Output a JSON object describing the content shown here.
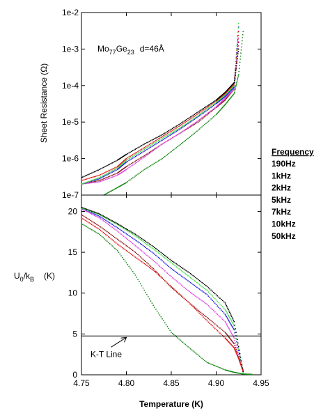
{
  "chart_data": [
    {
      "type": "scatter",
      "name": "sheet-resistance",
      "annotation": "Mo77Ge23  d=46Å",
      "annotation_parts": {
        "base1": "Mo",
        "sub1": "77",
        "base2": "Ge",
        "sub2": "23",
        "rest": "d=46Å"
      },
      "ylabel": "Sheet Resistance (Ω)",
      "xlim": [
        4.75,
        4.95
      ],
      "ylim": [
        1e-07,
        0.01
      ],
      "yscale": "log",
      "ytick_labels": [
        "1e-2",
        "1e-3",
        "1e-4",
        "1e-5",
        "1e-6",
        "1e-7"
      ],
      "ytick_values": [
        0.01,
        0.001,
        0.0001,
        1e-05,
        1e-06,
        1e-07
      ],
      "series": [
        {
          "name": "190Hz",
          "color": "#1a8a1a",
          "x": [
            4.775,
            4.79,
            4.8,
            4.82,
            4.84,
            4.86,
            4.88,
            4.9,
            4.91,
            4.92,
            4.925,
            4.93
          ],
          "y": [
            1e-07,
            1.6e-07,
            2.2e-07,
            5e-07,
            1e-06,
            2.4e-06,
            6e-06,
            1.6e-05,
            3e-05,
            6e-05,
            0.0002,
            0.003
          ]
        },
        {
          "name": "1kHz",
          "color": "#8b1a1a",
          "x": [
            4.75,
            4.77,
            4.79,
            4.8,
            4.82,
            4.84,
            4.86,
            4.88,
            4.9,
            4.91,
            4.92,
            4.925
          ],
          "y": [
            2e-07,
            2.5e-07,
            4e-07,
            6e-07,
            1.2e-06,
            2.5e-06,
            5e-06,
            1e-05,
            2.5e-05,
            4e-05,
            8e-05,
            0.0015
          ]
        },
        {
          "name": "2kHz",
          "color": "#e040e0",
          "x": [
            4.75,
            4.77,
            4.79,
            4.8,
            4.82,
            4.84,
            4.86,
            4.88,
            4.9,
            4.91,
            4.92,
            4.925
          ],
          "y": [
            2e-07,
            2.3e-07,
            3.5e-07,
            5e-07,
            1.1e-06,
            2.5e-06,
            5e-06,
            1.1e-05,
            2.6e-05,
            4.5e-05,
            8e-05,
            0.002
          ]
        },
        {
          "name": "5kHz",
          "color": "#1a1ae0",
          "x": [
            4.75,
            4.77,
            4.79,
            4.8,
            4.82,
            4.84,
            4.86,
            4.88,
            4.9,
            4.91,
            4.92,
            4.925
          ],
          "y": [
            2e-07,
            2.8e-07,
            5e-07,
            8e-07,
            1.6e-06,
            3.2e-06,
            6.5e-06,
            1.4e-05,
            3.2e-05,
            5e-05,
            9e-05,
            0.004
          ]
        },
        {
          "name": "7kHz",
          "color": "#40e040",
          "x": [
            4.75,
            4.77,
            4.79,
            4.8,
            4.82,
            4.84,
            4.86,
            4.88,
            4.9,
            4.91,
            4.92,
            4.925
          ],
          "y": [
            2e-07,
            3e-07,
            5.5e-07,
            9e-07,
            1.8e-06,
            3.6e-06,
            7e-06,
            1.5e-05,
            3.5e-05,
            5.5e-05,
            0.0001,
            0.005
          ]
        },
        {
          "name": "10kHz",
          "color": "#e01a1a",
          "x": [
            4.75,
            4.77,
            4.79,
            4.8,
            4.82,
            4.84,
            4.86,
            4.88,
            4.9,
            4.91,
            4.92,
            4.925
          ],
          "y": [
            2.5e-07,
            3.5e-07,
            6e-07,
            1e-06,
            2e-06,
            4e-06,
            8e-06,
            1.7e-05,
            3.8e-05,
            6e-05,
            0.00011,
            0.003
          ]
        },
        {
          "name": "50kHz",
          "color": "#000000",
          "x": [
            4.75,
            4.77,
            4.79,
            4.8,
            4.82,
            4.84,
            4.86,
            4.88,
            4.9,
            4.91,
            4.92,
            4.925
          ],
          "y": [
            3e-07,
            5e-07,
            9e-07,
            1.3e-06,
            2.5e-06,
            4.5e-06,
            9e-06,
            1.9e-05,
            4e-05,
            6.5e-05,
            0.00012,
            0.001
          ]
        }
      ]
    },
    {
      "type": "scatter",
      "name": "activation-energy",
      "ylabel_parts": {
        "base1": "U",
        "sub1": "0",
        "slash": "/k",
        "sub2": "B",
        "unit": "(K)"
      },
      "xlabel": "Temperature (K)",
      "xlim": [
        4.75,
        4.95
      ],
      "ylim": [
        0,
        22
      ],
      "xtick_labels": [
        "4.75",
        "4.80",
        "4.85",
        "4.90",
        "4.95"
      ],
      "xtick_values": [
        4.75,
        4.8,
        4.85,
        4.9,
        4.95
      ],
      "ytick_labels": [
        "0",
        "5",
        "10",
        "15",
        "20"
      ],
      "ytick_values": [
        0,
        5,
        10,
        15,
        20
      ],
      "kt_line": {
        "label": "K-T Line",
        "y": 4.75
      },
      "series": [
        {
          "name": "190Hz",
          "color": "#1a8a1a",
          "x": [
            4.75,
            4.77,
            4.79,
            4.81,
            4.83,
            4.85,
            4.87,
            4.89,
            4.91,
            4.92,
            4.93,
            4.94
          ],
          "y": [
            18.5,
            17.2,
            15.2,
            12.2,
            8.5,
            5.2,
            3.3,
            1.5,
            0.6,
            0.3,
            0.1,
            0.05
          ]
        },
        {
          "name": "1kHz",
          "color": "#8b1a1a",
          "x": [
            4.75,
            4.77,
            4.79,
            4.81,
            4.83,
            4.85,
            4.87,
            4.89,
            4.91,
            4.92,
            4.93
          ],
          "y": [
            19.6,
            18.2,
            16.6,
            15.0,
            13.0,
            10.7,
            8.8,
            7.0,
            5.2,
            3.8,
            0.6
          ]
        },
        {
          "name": "2kHz",
          "color": "#e040e0",
          "x": [
            4.75,
            4.77,
            4.79,
            4.81,
            4.83,
            4.85,
            4.87,
            4.89,
            4.91,
            4.92,
            4.93
          ],
          "y": [
            20.3,
            19.2,
            17.6,
            15.8,
            14.0,
            12.0,
            10.2,
            8.6,
            6.5,
            4.5,
            0.4
          ]
        },
        {
          "name": "5kHz",
          "color": "#1a1ae0",
          "x": [
            4.75,
            4.77,
            4.79,
            4.81,
            4.83,
            4.85,
            4.87,
            4.89,
            4.91,
            4.92,
            4.93
          ],
          "y": [
            20.4,
            19.4,
            18.0,
            16.5,
            14.9,
            13.0,
            11.4,
            9.8,
            7.4,
            5.5,
            0.4
          ]
        },
        {
          "name": "7kHz",
          "color": "#40e040",
          "x": [
            4.75,
            4.77,
            4.79,
            4.81,
            4.83,
            4.85,
            4.87,
            4.89,
            4.91,
            4.92,
            4.93
          ],
          "y": [
            20.4,
            19.6,
            18.4,
            17.0,
            15.4,
            13.7,
            12.0,
            10.3,
            8.0,
            6.0,
            0.3
          ]
        },
        {
          "name": "10kHz",
          "color": "#e01a1a",
          "x": [
            4.75,
            4.77,
            4.79,
            4.81,
            4.83,
            4.85,
            4.87,
            4.89,
            4.91,
            4.92,
            4.925,
            4.93
          ],
          "y": [
            19.2,
            17.8,
            16.0,
            14.4,
            12.8,
            10.8,
            8.8,
            6.6,
            4.5,
            3.3,
            2.0,
            0.4
          ]
        },
        {
          "name": "50kHz",
          "color": "#000000",
          "x": [
            4.75,
            4.77,
            4.79,
            4.81,
            4.83,
            4.85,
            4.87,
            4.89,
            4.91,
            4.92,
            4.93
          ],
          "y": [
            20.5,
            19.7,
            18.5,
            17.2,
            15.7,
            14.0,
            12.5,
            10.8,
            8.8,
            6.5,
            0.4
          ]
        }
      ]
    }
  ],
  "legend": {
    "title": "Frequency",
    "placement": "right",
    "items": [
      {
        "label": "190Hz",
        "color": "#1a8a1a"
      },
      {
        "label": "1kHz",
        "color": "#8b1a1a"
      },
      {
        "label": "2kHz",
        "color": "#e040e0"
      },
      {
        "label": "5kHz",
        "color": "#1a1ae0"
      },
      {
        "label": "7kHz",
        "color": "#40e040"
      },
      {
        "label": "10kHz",
        "color": "#e01a1a"
      },
      {
        "label": "50kHz",
        "color": "#000000"
      }
    ]
  }
}
